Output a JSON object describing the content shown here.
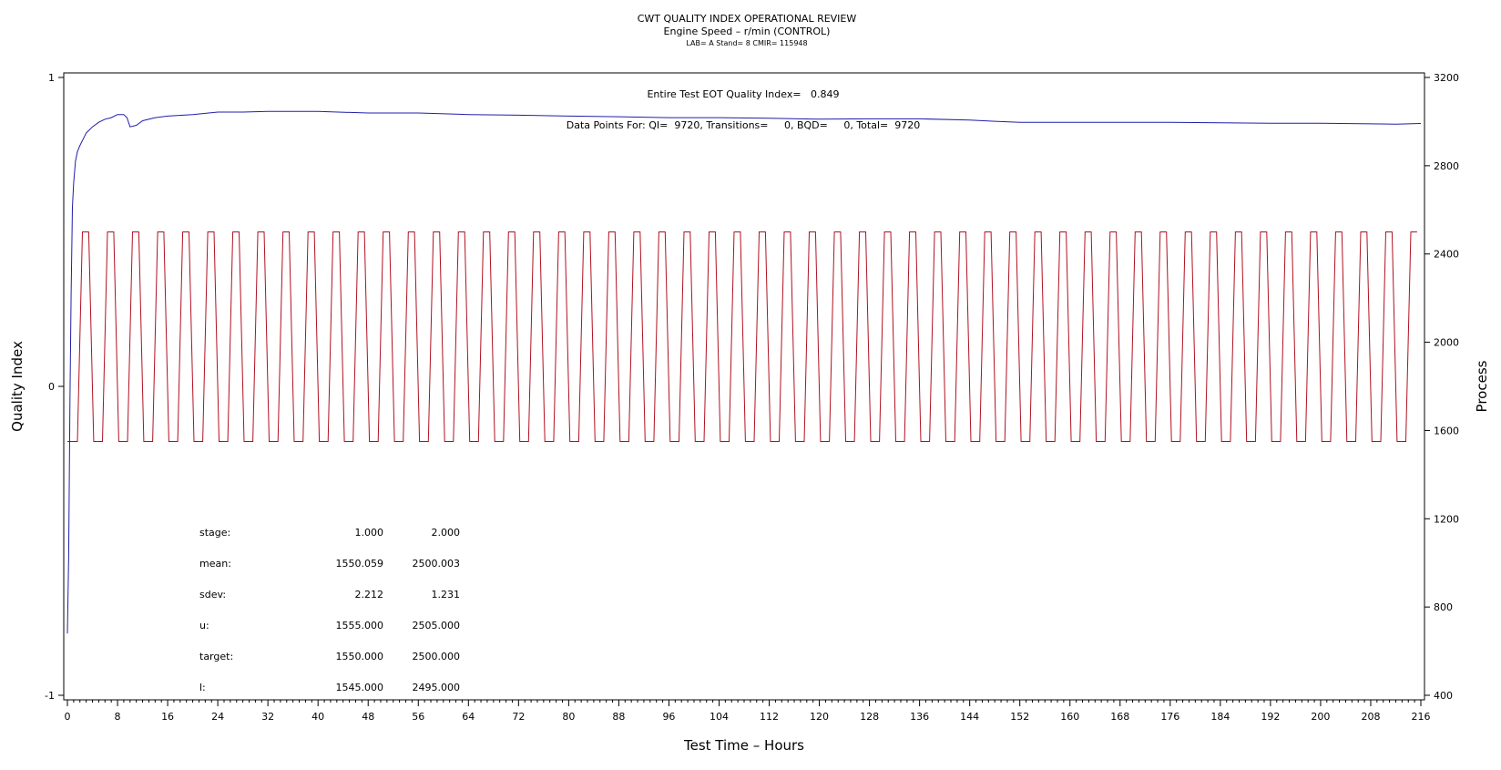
{
  "chart_data": {
    "type": "line",
    "title": "CWT QUALITY INDEX OPERATIONAL REVIEW",
    "subtitle": "Engine Speed – r/min (CONTROL)",
    "subsubtitle": "LAB= A Stand= 8 CMIR= 115948",
    "xlabel": "Test Time – Hours",
    "ylabel_left": "Quality Index",
    "ylabel_right": "Process",
    "xlim": [
      0,
      216
    ],
    "ylim_left": [
      -1,
      1
    ],
    "ylim_right": [
      400,
      3200
    ],
    "x_ticks": [
      0,
      8,
      16,
      24,
      32,
      40,
      48,
      56,
      64,
      72,
      80,
      88,
      96,
      104,
      112,
      120,
      128,
      136,
      144,
      152,
      160,
      168,
      176,
      184,
      192,
      200,
      208,
      216
    ],
    "y_ticks_left": [
      -1,
      0,
      1
    ],
    "y_ticks_right": [
      400,
      800,
      1200,
      1600,
      2000,
      2400,
      2800,
      3200
    ],
    "annotations": {
      "eot": "Entire Test EOT Quality Index=   0.849",
      "points": "Data Points For: QI=  9720, Transitions=     0, BQD=     0, Total=  9720"
    },
    "series": [
      {
        "axis": "left",
        "color": "#1f1fa8",
        "points": [
          [
            0,
            -0.8
          ],
          [
            0.2,
            -0.55
          ],
          [
            0.4,
            -0.05
          ],
          [
            0.6,
            0.3
          ],
          [
            0.8,
            0.58
          ],
          [
            1.0,
            0.66
          ],
          [
            1.3,
            0.73
          ],
          [
            1.6,
            0.76
          ],
          [
            2.0,
            0.78
          ],
          [
            2.5,
            0.8
          ],
          [
            3,
            0.82
          ],
          [
            3.5,
            0.83
          ],
          [
            4,
            0.84
          ],
          [
            5,
            0.855
          ],
          [
            6,
            0.865
          ],
          [
            7,
            0.87
          ],
          [
            8,
            0.88
          ],
          [
            9,
            0.88
          ],
          [
            9.5,
            0.87
          ],
          [
            10,
            0.84
          ],
          [
            11,
            0.845
          ],
          [
            12,
            0.86
          ],
          [
            14,
            0.87
          ],
          [
            16,
            0.875
          ],
          [
            20,
            0.88
          ],
          [
            24,
            0.888
          ],
          [
            28,
            0.888
          ],
          [
            32,
            0.89
          ],
          [
            36,
            0.89
          ],
          [
            40,
            0.89
          ],
          [
            48,
            0.885
          ],
          [
            56,
            0.885
          ],
          [
            64,
            0.88
          ],
          [
            72,
            0.878
          ],
          [
            80,
            0.875
          ],
          [
            88,
            0.873
          ],
          [
            96,
            0.87
          ],
          [
            104,
            0.87
          ],
          [
            112,
            0.868
          ],
          [
            120,
            0.865
          ],
          [
            128,
            0.866
          ],
          [
            136,
            0.866
          ],
          [
            144,
            0.862
          ],
          [
            148,
            0.858
          ],
          [
            152,
            0.855
          ],
          [
            160,
            0.855
          ],
          [
            168,
            0.855
          ],
          [
            176,
            0.855
          ],
          [
            184,
            0.853
          ],
          [
            192,
            0.852
          ],
          [
            200,
            0.852
          ],
          [
            208,
            0.85
          ],
          [
            212,
            0.849
          ],
          [
            216,
            0.851
          ]
        ]
      },
      {
        "axis": "right",
        "color": "#b01020",
        "cycle_hours": 4,
        "cycle_count": 54,
        "low_value": 1550,
        "high_value": 2500,
        "phases": [
          {
            "value": 1550,
            "start": 0.0,
            "end": 1.4
          },
          {
            "ramp_start": 1.4,
            "ramp_end": 2.2
          },
          {
            "value": 2500,
            "start": 2.2,
            "end": 3.2
          },
          {
            "ramp_start": 3.2,
            "ramp_end": 4.0
          }
        ],
        "first_stage_offset": 0.2
      }
    ],
    "stats_table": {
      "rows": [
        {
          "label": "stage:",
          "v1": "1.000",
          "v2": "2.000"
        },
        {
          "label": "mean:",
          "v1": "1550.059",
          "v2": "2500.003"
        },
        {
          "label": "sdev:",
          "v1": "2.212",
          "v2": "1.231"
        },
        {
          "label": "u:",
          "v1": "1555.000",
          "v2": "2505.000"
        },
        {
          "label": "target:",
          "v1": "1550.000",
          "v2": "2500.000"
        },
        {
          "label": "l:",
          "v1": "1545.000",
          "v2": "2495.000"
        }
      ]
    },
    "grid": false
  }
}
